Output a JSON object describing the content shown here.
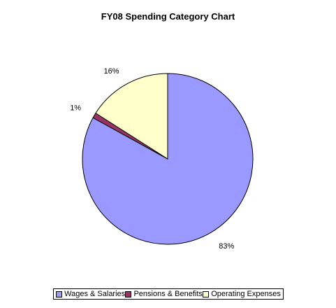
{
  "chart_data": {
    "type": "pie",
    "title": "FY08 Spending Category Chart",
    "slices": [
      {
        "name": "Wages & Salaries",
        "value": 83,
        "label": "83%",
        "color": "#9999ff"
      },
      {
        "name": "Pensions & Benefits",
        "value": 1,
        "label": "1%",
        "color": "#993366"
      },
      {
        "name": "Operating Expenses",
        "value": 16,
        "label": "16%",
        "color": "#ffffcc"
      }
    ],
    "legend_position": "bottom"
  }
}
